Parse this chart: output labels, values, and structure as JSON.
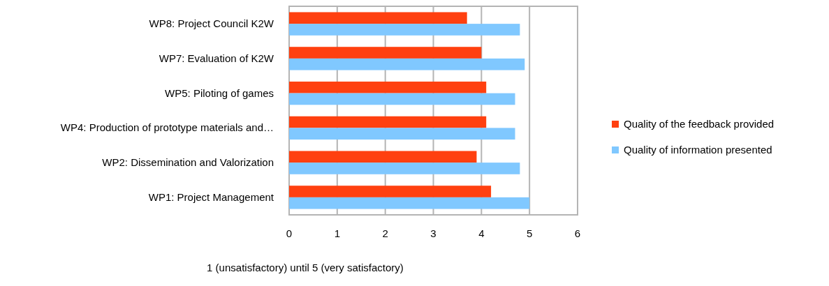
{
  "chart_data": {
    "type": "bar",
    "orientation": "horizontal",
    "xlabel": "1 (unsatisfactory) until 5 (very satisfactory)",
    "categories": [
      "WP8: Project Council K2W",
      "WP7: Evaluation of K2W",
      "WP5: Piloting of games",
      "WP4: Production of prototype materials and…",
      "WP2: Dissemination and Valorization",
      "WP1: Project Management"
    ],
    "series": [
      {
        "name": "Quality of the feedback provided",
        "color": "#ff4010",
        "values": [
          3.7,
          4.0,
          4.1,
          4.1,
          3.9,
          4.2
        ]
      },
      {
        "name": "Quality of information presented",
        "color": "#80c8ff",
        "values": [
          4.8,
          4.9,
          4.7,
          4.7,
          4.8,
          5.0
        ]
      }
    ],
    "xlim": [
      0,
      6
    ],
    "xticks": [
      0,
      1,
      2,
      3,
      4,
      5,
      6
    ],
    "grid": "x",
    "legend": "right"
  }
}
